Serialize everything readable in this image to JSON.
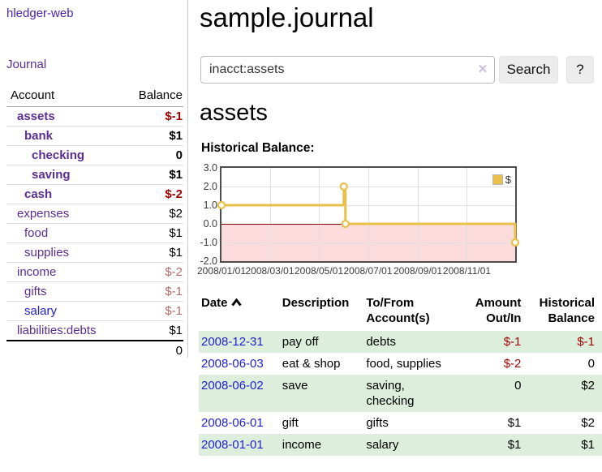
{
  "app": {
    "title": "hledger-web"
  },
  "sidebar": {
    "journal_label": "Journal",
    "account_header": "Account",
    "balance_header": "Balance",
    "accounts": [
      {
        "name": "assets",
        "balance": "$-1",
        "level": 1,
        "bold": true,
        "tone": "neg-strong"
      },
      {
        "name": "bank",
        "balance": "$1",
        "level": 2,
        "bold": true,
        "tone": ""
      },
      {
        "name": "checking",
        "balance": "0",
        "level": 3,
        "bold": true,
        "tone": ""
      },
      {
        "name": "saving",
        "balance": "$1",
        "level": 3,
        "bold": true,
        "tone": ""
      },
      {
        "name": "cash",
        "balance": "$-2",
        "level": 2,
        "bold": true,
        "tone": "neg-strong"
      },
      {
        "name": "expenses",
        "balance": "$2",
        "level": 1,
        "bold": false,
        "tone": ""
      },
      {
        "name": "food",
        "balance": "$1",
        "level": 2,
        "bold": false,
        "tone": ""
      },
      {
        "name": "supplies",
        "balance": "$1",
        "level": 2,
        "bold": false,
        "tone": ""
      },
      {
        "name": "income",
        "balance": "$-2",
        "level": 1,
        "bold": false,
        "tone": "neg-soft"
      },
      {
        "name": "gifts",
        "balance": "$-1",
        "level": 2,
        "bold": false,
        "tone": "neg-soft"
      },
      {
        "name": "salary",
        "balance": "$-1",
        "level": 2,
        "bold": false,
        "tone": "neg-soft",
        "blue": true
      },
      {
        "name": "liabilities:debts",
        "balance": "$1",
        "level": 1,
        "bold": false,
        "tone": ""
      }
    ],
    "total": "0"
  },
  "main": {
    "page_title": "sample.journal",
    "search": {
      "value": "inacct:assets",
      "clear_icon": "✕",
      "button_label": "Search",
      "help_label": "?"
    },
    "account_heading": "assets",
    "chart_heading": "Historical Balance:"
  },
  "chart_data": {
    "type": "line",
    "title": "Historical Balance:",
    "step": true,
    "series": [
      {
        "name": "$",
        "color": "#e8c04a",
        "points": [
          [
            "2008-01-01",
            1
          ],
          [
            "2008-06-01",
            2
          ],
          [
            "2008-06-03",
            0
          ],
          [
            "2008-12-31",
            -1
          ]
        ]
      }
    ],
    "xrange": [
      "2008-01-01",
      "2008-12-31"
    ],
    "ylim": [
      -2,
      3
    ],
    "yticks": [
      {
        "label": "3.0",
        "value": 3
      },
      {
        "label": "2.0",
        "value": 2
      },
      {
        "label": "1.0",
        "value": 1
      },
      {
        "label": "0.0",
        "value": 0
      },
      {
        "label": "-1.0",
        "value": -1
      },
      {
        "label": "-2.0",
        "value": -2
      }
    ],
    "xticks": [
      {
        "label": "2008/01/01",
        "date": "2008-01-01"
      },
      {
        "label": "2008/03/01",
        "date": "2008-03-01"
      },
      {
        "label": "2008/05/01",
        "date": "2008-05-01"
      },
      {
        "label": "2008/07/01",
        "date": "2008-07-01"
      },
      {
        "label": "2008/09/01",
        "date": "2008-09-01"
      },
      {
        "label": "2008/11/01",
        "date": "2008-11-01"
      }
    ],
    "legend_position": "top-right",
    "grid": true,
    "negative_region_color": "#fbdbdb",
    "zero_line_color": "#8b0000"
  },
  "register": {
    "columns": [
      "Date",
      "Description",
      "To/From Account(s)",
      "Amount Out/In",
      "Historical Balance"
    ],
    "rows": [
      {
        "date": "2008-12-31",
        "description": "pay off",
        "accounts": "debts",
        "amount": "$-1",
        "balance": "$-1",
        "amount_neg": true,
        "balance_neg": true
      },
      {
        "date": "2008-06-03",
        "description": "eat & shop",
        "accounts": "food, supplies",
        "amount": "$-2",
        "balance": "0",
        "amount_neg": true,
        "balance_neg": false
      },
      {
        "date": "2008-06-02",
        "description": "save",
        "accounts": "saving, checking",
        "amount": "0",
        "balance": "$2",
        "amount_neg": false,
        "balance_neg": false
      },
      {
        "date": "2008-06-01",
        "description": "gift",
        "accounts": "gifts",
        "amount": "$1",
        "balance": "$2",
        "amount_neg": false,
        "balance_neg": false
      },
      {
        "date": "2008-01-01",
        "description": "income",
        "accounts": "salary",
        "amount": "$1",
        "balance": "$1",
        "amount_neg": false,
        "balance_neg": false
      }
    ]
  },
  "colors": {
    "purple": "#5b2d91",
    "link_blue": "#2222cc",
    "neg_strong": "#9e0000",
    "neg_soft": "#b56a6a",
    "gold": "#e8c04a",
    "green_stripe": "#ddeedd",
    "chart_border": "#4d4d4d"
  }
}
